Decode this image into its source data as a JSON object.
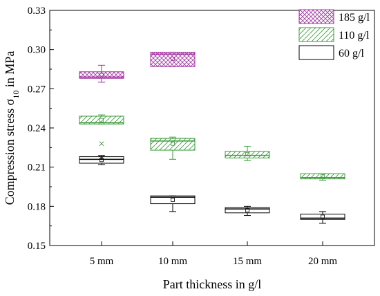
{
  "chart_data": {
    "type": "box",
    "xlabel": "Part thickness in g/l",
    "ylabel_main": "Compression stress σ",
    "ylabel_sub": "10",
    "ylabel_suffix": " in MPa",
    "categories": [
      "5 mm",
      "10 mm",
      "15 mm",
      "20 mm"
    ],
    "ylim": [
      0.15,
      0.33
    ],
    "yticks": [
      "0.15",
      "0.18",
      "0.21",
      "0.24",
      "0.27",
      "0.30",
      "0.33"
    ],
    "yticks_values": [
      0.15,
      0.18,
      0.21,
      0.24,
      0.27,
      0.3,
      0.33
    ],
    "legend_position": "top-right",
    "series": [
      {
        "name": "185 g/l",
        "color": "#a030a0",
        "pattern": "crosshatch",
        "boxes": [
          {
            "category": "5 mm",
            "q1": 0.278,
            "median": 0.279,
            "q3": 0.283,
            "whisker_low": 0.275,
            "whisker_high": 0.288,
            "mean": 0.2805
          },
          {
            "category": "10 mm",
            "q1": 0.287,
            "median": 0.2965,
            "q3": 0.298,
            "whisker_low": 0.287,
            "whisker_high": 0.298,
            "mean": 0.293
          }
        ]
      },
      {
        "name": "110 g/l",
        "color": "#3a9a3a",
        "pattern": "diagonal",
        "boxes": [
          {
            "category": "5 mm",
            "q1": 0.243,
            "median": 0.244,
            "q3": 0.249,
            "whisker_low": 0.243,
            "whisker_high": 0.25,
            "mean": 0.246,
            "outlier": 0.228
          },
          {
            "category": "10 mm",
            "q1": 0.223,
            "median": 0.23,
            "q3": 0.232,
            "whisker_low": 0.216,
            "whisker_high": 0.233,
            "mean": 0.228
          },
          {
            "category": "15 mm",
            "q1": 0.217,
            "median": 0.219,
            "q3": 0.222,
            "whisker_low": 0.215,
            "whisker_high": 0.226,
            "mean": 0.22
          },
          {
            "category": "20 mm",
            "q1": 0.201,
            "median": 0.202,
            "q3": 0.205,
            "whisker_low": 0.2,
            "whisker_high": 0.205,
            "mean": 0.203
          }
        ]
      },
      {
        "name": "60 g/l",
        "color": "#000000",
        "pattern": "none",
        "boxes": [
          {
            "category": "5 mm",
            "q1": 0.213,
            "median": 0.216,
            "q3": 0.218,
            "whisker_low": 0.212,
            "whisker_high": 0.219,
            "mean": 0.2155,
            "outlier": 0.217
          },
          {
            "category": "10 mm",
            "q1": 0.182,
            "median": 0.187,
            "q3": 0.188,
            "whisker_low": 0.176,
            "whisker_high": 0.188,
            "mean": 0.185
          },
          {
            "category": "15 mm",
            "q1": 0.175,
            "median": 0.178,
            "q3": 0.179,
            "whisker_low": 0.173,
            "whisker_high": 0.18,
            "mean": 0.177
          },
          {
            "category": "20 mm",
            "q1": 0.17,
            "median": 0.171,
            "q3": 0.174,
            "whisker_low": 0.167,
            "whisker_high": 0.176,
            "mean": 0.172
          }
        ]
      }
    ]
  }
}
